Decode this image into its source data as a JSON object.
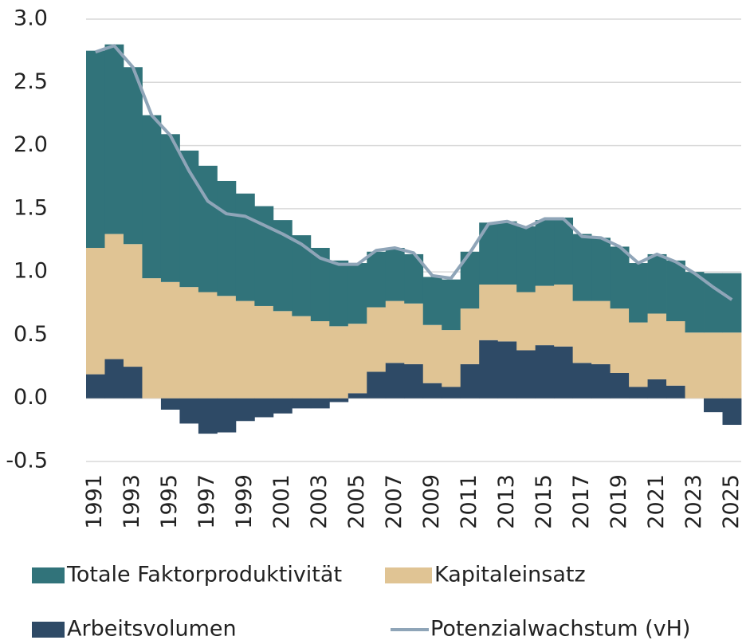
{
  "chart_data": {
    "type": "stacked_bar_line",
    "categories": [
      "1991",
      null,
      "1993",
      null,
      "1995",
      null,
      "1997",
      null,
      "1999",
      null,
      "2001",
      null,
      "2003",
      null,
      "2005",
      null,
      "2007",
      null,
      "2009",
      null,
      "2011",
      null,
      "2013",
      null,
      "2015",
      null,
      "2017",
      null,
      "2019",
      null,
      "2021",
      null,
      "2023",
      null,
      "2025"
    ],
    "series": [
      {
        "name": "Arbeitsvolumen",
        "color": "#2e4a66",
        "kind": "bar",
        "values": [
          0.19,
          0.31,
          0.25,
          0,
          -0.09,
          -0.2,
          -0.28,
          -0.27,
          -0.18,
          -0.15,
          -0.12,
          -0.08,
          -0.08,
          -0.03,
          0.04,
          0.21,
          0.28,
          0.27,
          0.12,
          0.09,
          0.27,
          0.46,
          0.45,
          0.38,
          0.42,
          0.41,
          0.28,
          0.27,
          0.2,
          0.09,
          0.15,
          0.1,
          0,
          -0.11,
          -0.21
        ]
      },
      {
        "name": "Kapitaleinsatz",
        "color": "#e0c494",
        "kind": "bar",
        "values": [
          1.0,
          0.99,
          0.97,
          0.95,
          0.92,
          0.88,
          0.84,
          0.81,
          0.77,
          0.73,
          0.69,
          0.65,
          0.61,
          0.57,
          0.55,
          0.51,
          0.49,
          0.48,
          0.46,
          0.45,
          0.44,
          0.44,
          0.45,
          0.46,
          0.47,
          0.49,
          0.49,
          0.5,
          0.51,
          0.51,
          0.52,
          0.51,
          0.52,
          0.52,
          0.52
        ]
      },
      {
        "name": "Totale Faktorproduktivität",
        "color": "#31737a",
        "kind": "bar",
        "values": [
          1.56,
          1.5,
          1.4,
          1.29,
          1.17,
          1.08,
          1.0,
          0.91,
          0.85,
          0.79,
          0.72,
          0.64,
          0.58,
          0.52,
          0.48,
          0.44,
          0.42,
          0.39,
          0.38,
          0.4,
          0.45,
          0.49,
          0.5,
          0.52,
          0.52,
          0.53,
          0.53,
          0.5,
          0.49,
          0.47,
          0.47,
          0.48,
          0.48,
          0.47,
          0.47
        ]
      },
      {
        "name": "Potenzialwachstum (vH)",
        "color": "#8fa5b8",
        "kind": "line",
        "values": [
          2.74,
          2.79,
          2.62,
          2.24,
          2.08,
          1.8,
          1.56,
          1.46,
          1.44,
          1.37,
          1.3,
          1.22,
          1.11,
          1.06,
          1.06,
          1.17,
          1.19,
          1.15,
          0.97,
          0.95,
          1.15,
          1.38,
          1.4,
          1.35,
          1.42,
          1.42,
          1.28,
          1.27,
          1.2,
          1.07,
          1.14,
          1.08,
          0.99,
          0.88,
          0.78
        ]
      }
    ],
    "ylim": [
      -0.5,
      3.0
    ],
    "yticks": [
      {
        "value": -0.5,
        "label": "-0.5"
      },
      {
        "value": 0,
        "label": "0.0"
      },
      {
        "value": 0.5,
        "label": "0.5"
      },
      {
        "value": 1,
        "label": "1.0"
      },
      {
        "value": 1.5,
        "label": "1.5"
      },
      {
        "value": 2,
        "label": "2.0"
      },
      {
        "value": 2.5,
        "label": "2.5"
      },
      {
        "value": 3,
        "label": "3.0"
      }
    ],
    "grid": true
  }
}
